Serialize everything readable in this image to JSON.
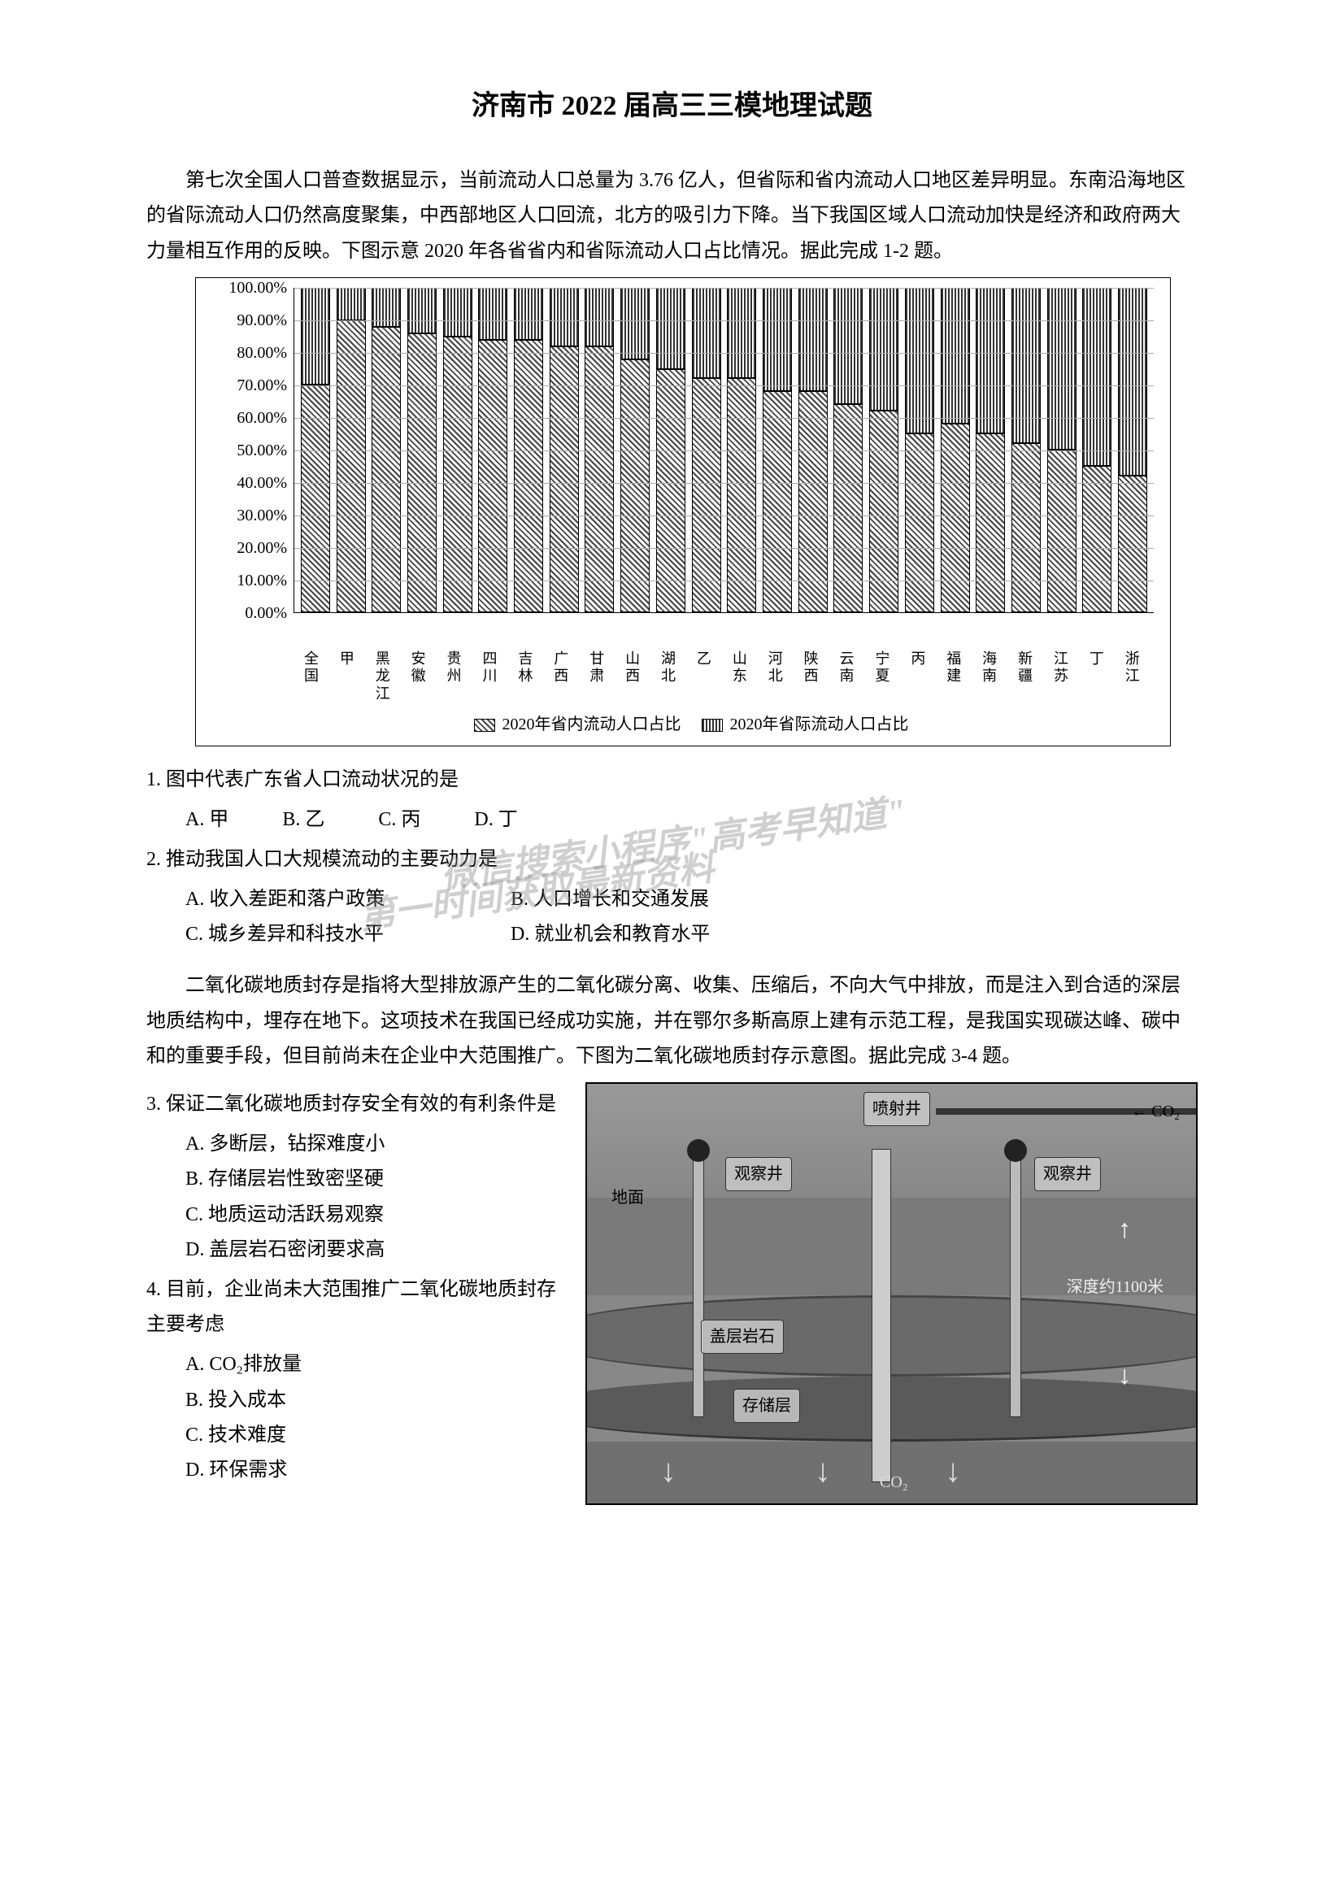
{
  "title": "济南市 2022 届高三三模地理试题",
  "intro1": "第七次全国人口普查数据显示，当前流动人口总量为 3.76 亿人，但省际和省内流动人口地区差异明显。东南沿海地区的省际流动人口仍然高度聚集，中西部地区人口回流，北方的吸引力下降。当下我国区域人口流动加快是经济和政府两大力量相互作用的反映。下图示意 2020 年各省省内和省际流动人口占比情况。据此完成 1-2 题。",
  "chart": {
    "type": "stacked-bar",
    "ylim": [
      0,
      100
    ],
    "ytick_step": 10,
    "y_format": "percent",
    "background_color": "#ffffff",
    "grid_color": "#aaaaaa",
    "categories": [
      "全国",
      "甲",
      "黑龙江",
      "安徽",
      "贵州",
      "四川",
      "吉林",
      "广西",
      "甘肃",
      "山西",
      "湖北",
      "乙",
      "山东",
      "河北",
      "陕西",
      "云南",
      "宁夏",
      "丙",
      "福建",
      "海南",
      "新疆",
      "江苏",
      "丁",
      "浙江"
    ],
    "intra_values": [
      70,
      90,
      88,
      86,
      85,
      84,
      84,
      82,
      82,
      78,
      75,
      72,
      72,
      68,
      68,
      64,
      62,
      55,
      58,
      55,
      52,
      50,
      45,
      42
    ],
    "inter_values": [
      30,
      10,
      12,
      14,
      15,
      16,
      16,
      18,
      18,
      22,
      25,
      28,
      28,
      32,
      32,
      36,
      38,
      45,
      42,
      45,
      48,
      50,
      55,
      58
    ],
    "legend1": "2020年省内流动人口占比",
    "legend2": "2020年省际流动人口占比",
    "bar_pattern1": "diagonal-hatch",
    "bar_pattern2": "vertical-hatch"
  },
  "q1": {
    "stem": "1. 图中代表广东省人口流动状况的是",
    "A": "A. 甲",
    "B": "B. 乙",
    "C": "C. 丙",
    "D": "D. 丁"
  },
  "q2": {
    "stem": "2. 推动我国人口大规模流动的主要动力是",
    "A": "A. 收入差距和落户政策",
    "B": "B. 人口增长和交通发展",
    "C": "C. 城乡差异和科技水平",
    "D": "D. 就业机会和教育水平"
  },
  "watermark1": "微信搜索小程序\"高考早知道\"",
  "watermark2": "第一时间获取最新资料",
  "intro2": "二氧化碳地质封存是指将大型排放源产生的二氧化碳分离、收集、压缩后，不向大气中排放，而是注入到合适的深层地质结构中，埋存在地下。这项技术在我国已经成功实施，并在鄂尔多斯高原上建有示范工程，是我国实现碳达峰、碳中和的重要手段，但目前尚未在企业中大范围推广。下图为二氧化碳地质封存示意图。据此完成 3-4 题。",
  "q3": {
    "stem": "3. 保证二氧化碳地质封存安全有效的有利条件是",
    "A": "A. 多断层，钻探难度小",
    "B": "B. 存储层岩性致密坚硬",
    "C": "C. 地质运动活跃易观察",
    "D": "D. 盖层岩石密闭要求高"
  },
  "q4": {
    "stem": "4. 目前，企业尚未大范围推广二氧化碳地质封存主要考虑",
    "A": "A. CO₂排放量",
    "B": "B. 投入成本",
    "C": "C. 技术难度",
    "D": "D. 环保需求"
  },
  "diagram": {
    "labels": {
      "injection_well": "喷射井",
      "observation_well": "观察井",
      "ground": "地面",
      "cap_rock": "盖层岩石",
      "storage": "存储层",
      "depth": "深度约1100米",
      "co2": "CO₂",
      "co2_in": "CO₂"
    },
    "colors": {
      "surface": "#888888",
      "cap": "#6a6a6a",
      "storage": "#5a5a5a",
      "well": "#bbbbbb"
    },
    "depth_m": 1100
  }
}
